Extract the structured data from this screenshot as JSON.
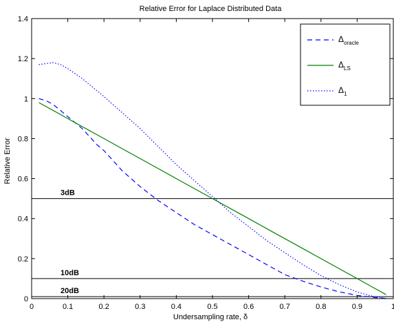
{
  "chart_data": {
    "type": "line",
    "title": "Relative Error for Laplace Distributed Data",
    "xlabel": "Undersampling rate, δ",
    "ylabel": "Relative Error",
    "xlim": [
      0,
      1
    ],
    "ylim": [
      0,
      1.4
    ],
    "xticks": [
      0,
      0.1,
      0.2,
      0.3,
      0.4,
      0.5,
      0.6,
      0.7,
      0.8,
      0.9,
      1
    ],
    "xtick_labels": [
      "0",
      "0.1",
      "0.2",
      "0.3",
      "0.4",
      "0.5",
      "0.6",
      "0.7",
      "0.8",
      "0.9",
      "1"
    ],
    "yticks": [
      0,
      0.2,
      0.4,
      0.6,
      0.8,
      1,
      1.2,
      1.4
    ],
    "ytick_labels": [
      "0",
      "0.2",
      "0.4",
      "0.6",
      "0.8",
      "1",
      "1.2",
      "1.4"
    ],
    "grid": false,
    "legend_position": "top-right",
    "x": [
      0.02,
      0.04,
      0.06,
      0.08,
      0.1,
      0.12,
      0.14,
      0.16,
      0.18,
      0.2,
      0.25,
      0.3,
      0.35,
      0.4,
      0.45,
      0.5,
      0.55,
      0.6,
      0.65,
      0.7,
      0.75,
      0.8,
      0.85,
      0.9,
      0.95,
      0.98
    ],
    "series": [
      {
        "name_main": "Δ",
        "name_sub": "oracle",
        "style": "dashed",
        "color": "#0000ff",
        "values": [
          1.0,
          0.99,
          0.97,
          0.94,
          0.91,
          0.88,
          0.85,
          0.81,
          0.77,
          0.74,
          0.64,
          0.56,
          0.49,
          0.43,
          0.37,
          0.32,
          0.27,
          0.22,
          0.17,
          0.12,
          0.087,
          0.058,
          0.034,
          0.016,
          0.005,
          0.001
        ]
      },
      {
        "name_main": "Δ",
        "name_sub": "LS",
        "style": "solid",
        "color": "#008000",
        "values": [
          0.98,
          0.96,
          0.94,
          0.92,
          0.9,
          0.88,
          0.86,
          0.84,
          0.82,
          0.8,
          0.75,
          0.7,
          0.65,
          0.6,
          0.55,
          0.5,
          0.45,
          0.4,
          0.35,
          0.3,
          0.25,
          0.2,
          0.15,
          0.1,
          0.05,
          0.02
        ]
      },
      {
        "name_main": "Δ",
        "name_sub": "1",
        "style": "dotted",
        "color": "#0000ff",
        "values": [
          1.17,
          1.175,
          1.18,
          1.17,
          1.15,
          1.125,
          1.1,
          1.07,
          1.04,
          1.01,
          0.93,
          0.85,
          0.76,
          0.67,
          0.59,
          0.51,
          0.43,
          0.36,
          0.29,
          0.23,
          0.17,
          0.115,
          0.07,
          0.033,
          0.008,
          0.001
        ]
      }
    ],
    "reference_lines": [
      {
        "label": "3dB",
        "y": 0.5
      },
      {
        "label": "10dB",
        "y": 0.1
      },
      {
        "label": "20dB",
        "y": 0.01
      }
    ]
  }
}
